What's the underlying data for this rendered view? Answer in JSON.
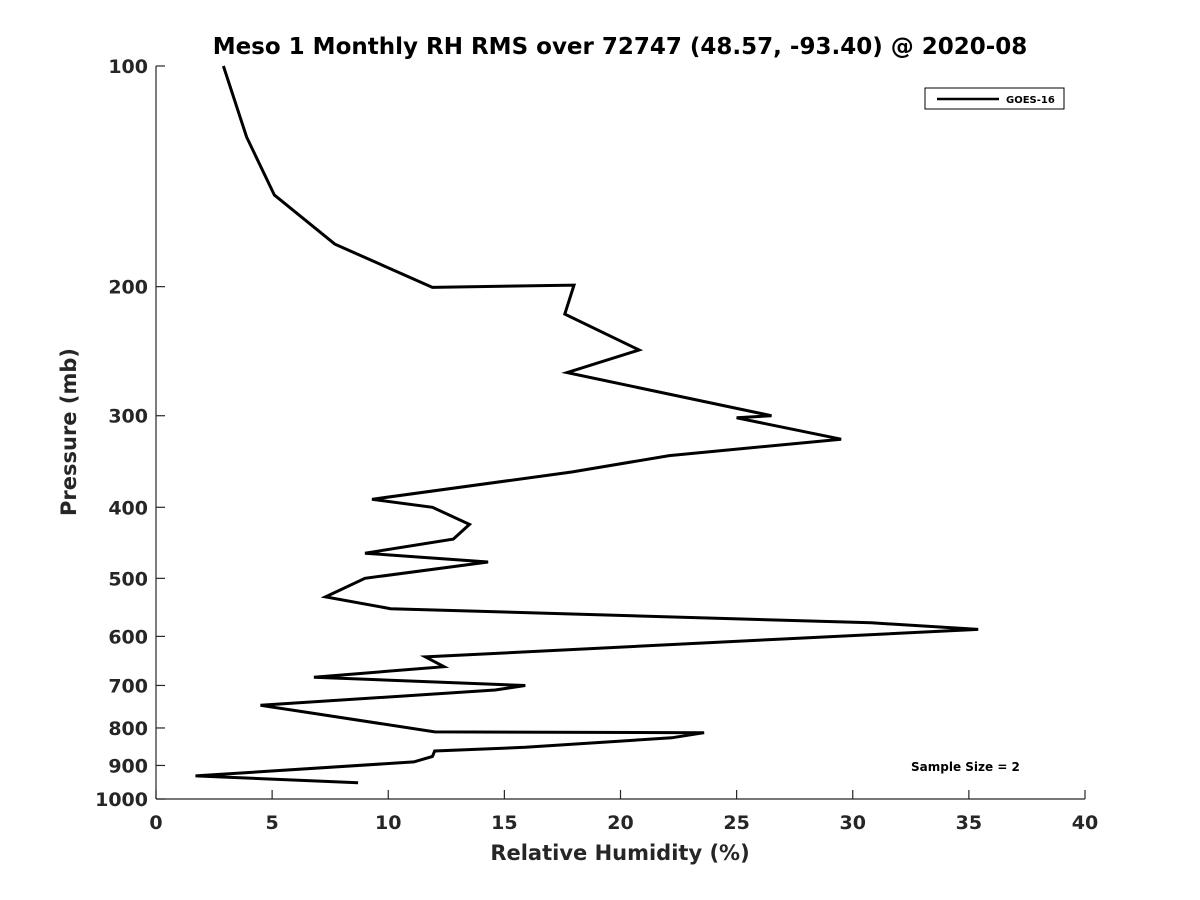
{
  "chart_data": {
    "type": "line",
    "title": "Meso 1 Monthly RH RMS over 72747 (48.57, -93.40) @ 2020-08",
    "xlabel": "Relative Humidity (%)",
    "ylabel": "Pressure (mb)",
    "xlim": [
      0,
      40
    ],
    "ylim": [
      1000,
      100
    ],
    "y_scale": "log",
    "y_reversed": true,
    "x_ticks": [
      0,
      5,
      10,
      15,
      20,
      25,
      30,
      35,
      40
    ],
    "x_tick_labels": [
      "0",
      "5",
      "10",
      "15",
      "20",
      "25",
      "30",
      "35",
      "40"
    ],
    "y_ticks": [
      100,
      200,
      300,
      400,
      500,
      600,
      700,
      800,
      900,
      1000
    ],
    "y_tick_labels": [
      "100",
      "200",
      "300",
      "400",
      "500",
      "600",
      "700",
      "800",
      "900",
      "1000"
    ],
    "grid": false,
    "legend_position": "top-right",
    "annotation": "Sample Size = 2",
    "series": [
      {
        "name": "GOES-16",
        "color": "#000000",
        "points": [
          [
            2.9,
            100
          ],
          [
            3.9,
            125
          ],
          [
            5.1,
            150
          ],
          [
            7.7,
            175
          ],
          [
            11.9,
            200.5
          ],
          [
            18.0,
            199
          ],
          [
            17.6,
            218
          ],
          [
            20.8,
            244
          ],
          [
            17.7,
            262
          ],
          [
            26.5,
            300
          ],
          [
            25.0,
            302
          ],
          [
            29.5,
            323
          ],
          [
            22.1,
            340
          ],
          [
            17.9,
            358
          ],
          [
            9.3,
            390
          ],
          [
            11.9,
            400
          ],
          [
            13.5,
            422
          ],
          [
            12.8,
            442
          ],
          [
            9.0,
            462
          ],
          [
            14.3,
            475
          ],
          [
            9.0,
            500
          ],
          [
            7.3,
            530
          ],
          [
            10.1,
            550
          ],
          [
            30.8,
            575
          ],
          [
            35.4,
            587
          ],
          [
            27.0,
            605
          ],
          [
            11.6,
            640
          ],
          [
            12.4,
            660
          ],
          [
            6.8,
            682
          ],
          [
            15.9,
            700
          ],
          [
            14.6,
            710
          ],
          [
            4.5,
            745
          ],
          [
            6.3,
            760
          ],
          [
            12.0,
            810
          ],
          [
            23.6,
            812
          ],
          [
            22.2,
            825
          ],
          [
            15.9,
            850
          ],
          [
            12.0,
            860
          ],
          [
            11.9,
            875
          ],
          [
            11.1,
            890
          ],
          [
            1.7,
            930
          ],
          [
            8.7,
            950
          ]
        ]
      }
    ]
  }
}
